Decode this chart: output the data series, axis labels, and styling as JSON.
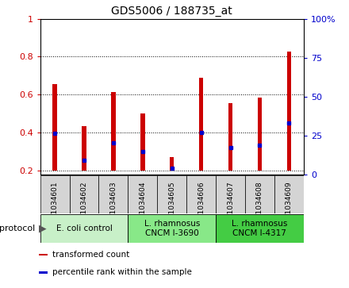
{
  "title": "GDS5006 / 188735_at",
  "samples": [
    "GSM1034601",
    "GSM1034602",
    "GSM1034603",
    "GSM1034604",
    "GSM1034605",
    "GSM1034606",
    "GSM1034607",
    "GSM1034608",
    "GSM1034609"
  ],
  "red_bar_top": [
    0.655,
    0.435,
    0.615,
    0.5,
    0.27,
    0.69,
    0.555,
    0.585,
    0.825
  ],
  "blue_marker": [
    0.395,
    0.255,
    0.345,
    0.3,
    0.21,
    0.4,
    0.32,
    0.335,
    0.45
  ],
  "bar_bottom": 0.2,
  "ylim_left": [
    0.18,
    1.0
  ],
  "ylim_right": [
    0,
    100
  ],
  "yticks_left": [
    0.2,
    0.4,
    0.6,
    0.8,
    1.0
  ],
  "ytick_labels_left": [
    "0.2",
    "0.4",
    "0.6",
    "0.8",
    "1"
  ],
  "yticks_right": [
    0,
    25,
    50,
    75,
    100
  ],
  "ytick_labels_right": [
    "0",
    "25",
    "50",
    "75",
    "100%"
  ],
  "groups": [
    {
      "label": "E. coli control",
      "start": 0,
      "end": 3,
      "color": "#c8f0c8"
    },
    {
      "label": "L. rhamnosus\nCNCM I-3690",
      "start": 3,
      "end": 6,
      "color": "#88e888"
    },
    {
      "label": "L. rhamnosus\nCNCM I-4317",
      "start": 6,
      "end": 9,
      "color": "#44cc44"
    }
  ],
  "bar_color": "#cc0000",
  "blue_color": "#0000cc",
  "bg_color_tick": "#d4d4d4",
  "legend_items": [
    {
      "color": "#cc0000",
      "label": "transformed count"
    },
    {
      "color": "#0000cc",
      "label": "percentile rank within the sample"
    }
  ],
  "protocol_label": "protocol",
  "bar_width": 0.15
}
